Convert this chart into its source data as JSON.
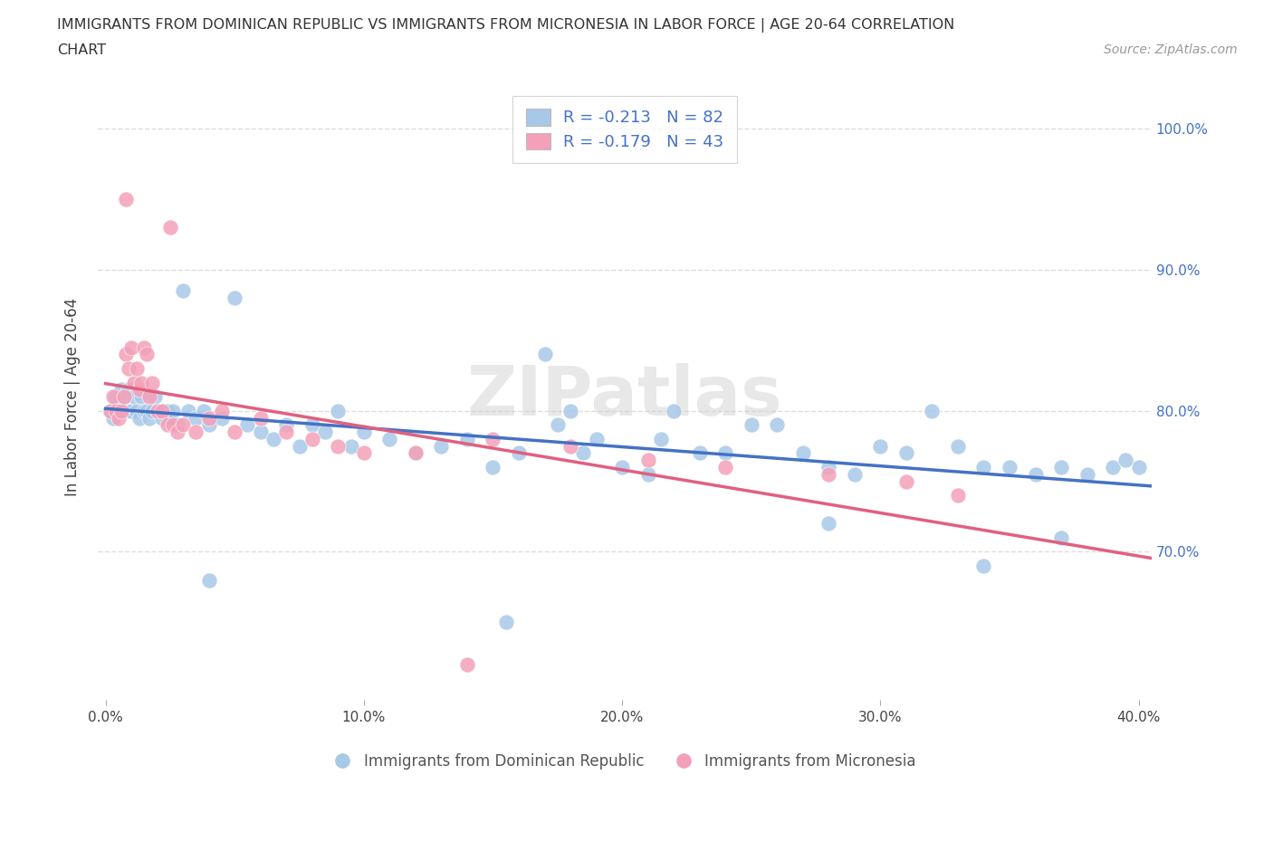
{
  "title_line1": "IMMIGRANTS FROM DOMINICAN REPUBLIC VS IMMIGRANTS FROM MICRONESIA IN LABOR FORCE | AGE 20-64 CORRELATION",
  "title_line2": "CHART",
  "source_text": "Source: ZipAtlas.com",
  "ylabel": "In Labor Force | Age 20-64",
  "xlim": [
    -0.003,
    0.405
  ],
  "ylim": [
    0.595,
    1.025
  ],
  "yticks": [
    0.7,
    0.8,
    0.9,
    1.0
  ],
  "ytick_labels": [
    "70.0%",
    "80.0%",
    "90.0%",
    "100.0%"
  ],
  "xticks": [
    0.0,
    0.1,
    0.2,
    0.3,
    0.4
  ],
  "xtick_labels": [
    "0.0%",
    "10.0%",
    "20.0%",
    "30.0%",
    "40.0%"
  ],
  "blue_R": -0.213,
  "blue_N": 82,
  "pink_R": -0.179,
  "pink_N": 43,
  "blue_color": "#a8c8e8",
  "pink_color": "#f4a0b8",
  "blue_line_color": "#4472c4",
  "pink_line_color": "#e06080",
  "legend_label_blue": "Immigrants from Dominican Republic",
  "legend_label_pink": "Immigrants from Micronesia",
  "blue_scatter_x": [
    0.002,
    0.003,
    0.004,
    0.005,
    0.006,
    0.007,
    0.008,
    0.009,
    0.01,
    0.011,
    0.012,
    0.013,
    0.014,
    0.015,
    0.016,
    0.017,
    0.018,
    0.019,
    0.02,
    0.021,
    0.022,
    0.023,
    0.024,
    0.025,
    0.026,
    0.028,
    0.03,
    0.032,
    0.035,
    0.038,
    0.04,
    0.045,
    0.05,
    0.055,
    0.06,
    0.065,
    0.07,
    0.075,
    0.08,
    0.085,
    0.09,
    0.095,
    0.1,
    0.11,
    0.12,
    0.13,
    0.14,
    0.15,
    0.16,
    0.17,
    0.175,
    0.18,
    0.185,
    0.19,
    0.2,
    0.21,
    0.215,
    0.22,
    0.23,
    0.24,
    0.25,
    0.26,
    0.27,
    0.28,
    0.29,
    0.3,
    0.31,
    0.32,
    0.33,
    0.34,
    0.35,
    0.36,
    0.37,
    0.38,
    0.39,
    0.395,
    0.4,
    0.34,
    0.28,
    0.37,
    0.155,
    0.04
  ],
  "blue_scatter_y": [
    0.8,
    0.795,
    0.81,
    0.8,
    0.815,
    0.81,
    0.8,
    0.815,
    0.8,
    0.81,
    0.8,
    0.795,
    0.81,
    0.8,
    0.8,
    0.795,
    0.8,
    0.81,
    0.8,
    0.8,
    0.795,
    0.8,
    0.8,
    0.795,
    0.8,
    0.79,
    0.885,
    0.8,
    0.795,
    0.8,
    0.79,
    0.795,
    0.88,
    0.79,
    0.785,
    0.78,
    0.79,
    0.775,
    0.79,
    0.785,
    0.8,
    0.775,
    0.785,
    0.78,
    0.77,
    0.775,
    0.78,
    0.76,
    0.77,
    0.84,
    0.79,
    0.8,
    0.77,
    0.78,
    0.76,
    0.755,
    0.78,
    0.8,
    0.77,
    0.77,
    0.79,
    0.79,
    0.77,
    0.76,
    0.755,
    0.775,
    0.77,
    0.8,
    0.775,
    0.76,
    0.76,
    0.755,
    0.76,
    0.755,
    0.76,
    0.765,
    0.76,
    0.69,
    0.72,
    0.71,
    0.65,
    0.68
  ],
  "pink_scatter_x": [
    0.002,
    0.003,
    0.004,
    0.005,
    0.006,
    0.007,
    0.008,
    0.009,
    0.01,
    0.011,
    0.012,
    0.013,
    0.014,
    0.015,
    0.016,
    0.017,
    0.018,
    0.02,
    0.022,
    0.024,
    0.026,
    0.028,
    0.03,
    0.035,
    0.04,
    0.045,
    0.05,
    0.06,
    0.07,
    0.08,
    0.09,
    0.1,
    0.12,
    0.15,
    0.18,
    0.21,
    0.24,
    0.28,
    0.31,
    0.33,
    0.025,
    0.008,
    0.14
  ],
  "pink_scatter_y": [
    0.8,
    0.81,
    0.8,
    0.795,
    0.8,
    0.81,
    0.84,
    0.83,
    0.845,
    0.82,
    0.83,
    0.815,
    0.82,
    0.845,
    0.84,
    0.81,
    0.82,
    0.8,
    0.8,
    0.79,
    0.79,
    0.785,
    0.79,
    0.785,
    0.795,
    0.8,
    0.785,
    0.795,
    0.785,
    0.78,
    0.775,
    0.77,
    0.77,
    0.78,
    0.775,
    0.765,
    0.76,
    0.755,
    0.75,
    0.74,
    0.93,
    0.95,
    0.62
  ]
}
